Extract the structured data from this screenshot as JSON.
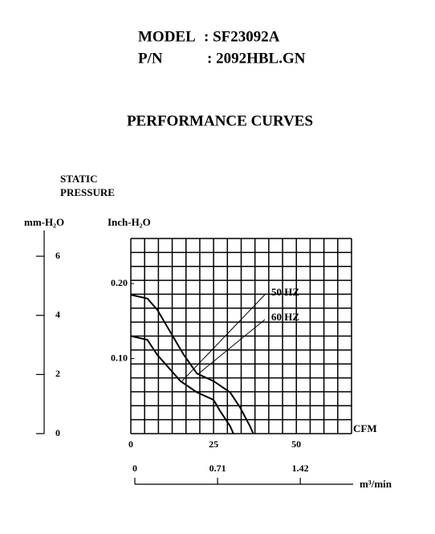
{
  "header": {
    "model_label": "MODEL",
    "model_value": ": SF23092A",
    "pn_label": "P/N",
    "pn_value": ": 2092HBL.GN"
  },
  "chart_data": {
    "type": "line",
    "title": "PERFORMANCE  CURVES",
    "ylabel_lines": [
      "STATIC",
      "PRESSURE"
    ],
    "ylabel": "Inch-H₂O",
    "y2label": "mm-H₂O",
    "xlabel": "CFM",
    "x2label": "m³/min",
    "xlim": [
      0,
      66.7
    ],
    "xticks": [
      0,
      25,
      50
    ],
    "ylim": [
      0,
      0.26
    ],
    "yticks": [
      {
        "value": 0.1,
        "label": "0.10"
      },
      {
        "value": 0.2,
        "label": "0.20"
      }
    ],
    "y2lim": [
      0,
      6.6
    ],
    "y2ticks": [
      0,
      2,
      4,
      6
    ],
    "x2lim": [
      0,
      1.894
    ],
    "x2ticks": [
      0,
      0.71,
      1.42
    ],
    "grid": true,
    "grid_cols": 16,
    "grid_rows": 14,
    "series": [
      {
        "name": "50 HZ",
        "color": "#000000",
        "x": [
          0,
          5,
          8,
          12,
          15,
          20,
          25,
          27,
          30,
          31
        ],
        "values": [
          0.13,
          0.125,
          0.105,
          0.085,
          0.07,
          0.055,
          0.045,
          0.03,
          0.01,
          0
        ]
      },
      {
        "name": "60 HZ",
        "color": "#000000",
        "x": [
          0,
          5,
          8,
          12,
          16,
          20,
          25,
          30,
          33,
          36,
          37
        ],
        "values": [
          0.185,
          0.18,
          0.165,
          0.135,
          0.105,
          0.08,
          0.07,
          0.055,
          0.035,
          0.01,
          0
        ]
      }
    ]
  }
}
